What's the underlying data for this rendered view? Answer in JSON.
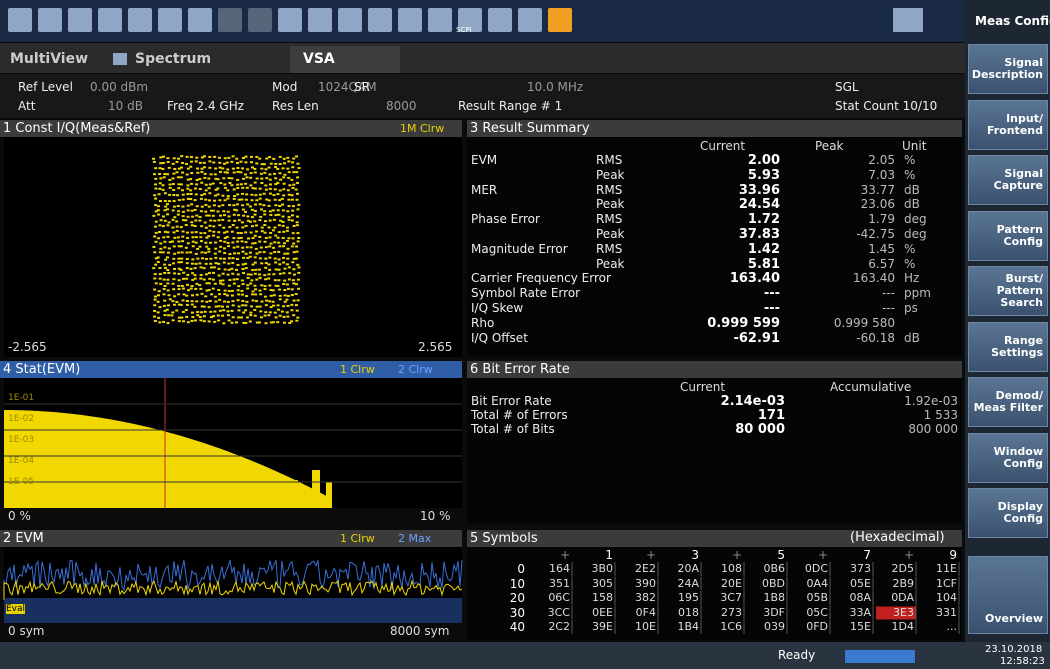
{
  "toolbar": {
    "scpi": "SCPI"
  },
  "sidebar": {
    "title": "Meas Config",
    "buttons": [
      "Signal Description",
      "Input/ Frontend",
      "Signal Capture",
      "Pattern Config",
      "Burst/ Pattern Search",
      "Range Settings",
      "Demod/ Meas Filter",
      "Window Config",
      "Display Config"
    ],
    "overview": "Overview"
  },
  "tabs": [
    "MultiView",
    "Spectrum",
    "VSA"
  ],
  "info": [
    "Ref Level",
    "0.00 dBm",
    "Mod",
    "1024QAM",
    "SR",
    "10.0 MHz",
    "SGL",
    "Att",
    "10 dB",
    "Freq 2.4 GHz",
    "Res Len",
    "8000",
    "Result Range # 1",
    "Stat Count 10/10"
  ],
  "windows": {
    "const": {
      "title": "1 Const I/Q(Meas&Ref)",
      "legend": "1M Clrw",
      "xmin": "-2.565",
      "xmax": "2.565"
    },
    "stat": {
      "title": "4 Stat(EVM)",
      "legend": [
        "1 Clrw",
        "2 Clrw"
      ],
      "ylabels": [
        "1E-01",
        "1E-02",
        "1E-03",
        "1E-04",
        "1E-05"
      ],
      "xmin": "0 %",
      "xmax": "10 %"
    },
    "evm": {
      "title": "2 EVM",
      "legend": [
        "1 Clrw",
        "2 Max"
      ],
      "eval": "Eval",
      "xmin": "0 sym",
      "xmax": "8000 sym"
    }
  },
  "result_summary": {
    "title": "3 Result Summary",
    "headers": [
      "Current",
      "Peak",
      "Unit"
    ],
    "rows": [
      [
        "EVM",
        "RMS",
        "2.00",
        "2.05",
        "%"
      ],
      [
        "",
        "Peak",
        "5.93",
        "7.03",
        "%"
      ],
      [
        "MER",
        "RMS",
        "33.96",
        "33.77",
        "dB"
      ],
      [
        "",
        "Peak",
        "24.54",
        "23.06",
        "dB"
      ],
      [
        "Phase Error",
        "RMS",
        "1.72",
        "1.79",
        "deg"
      ],
      [
        "",
        "Peak",
        "37.83",
        "-42.75",
        "deg"
      ],
      [
        "Magnitude Error",
        "RMS",
        "1.42",
        "1.45",
        "%"
      ],
      [
        "",
        "Peak",
        "5.81",
        "6.57",
        "%"
      ],
      [
        "Carrier Frequency Error",
        "",
        "163.40",
        "163.40",
        "Hz"
      ],
      [
        "Symbol Rate Error",
        "",
        "---",
        "---",
        "ppm"
      ],
      [
        "I/Q Skew",
        "",
        "---",
        "---",
        "ps"
      ],
      [
        "Rho",
        "",
        "0.999 599",
        "0.999 580",
        ""
      ],
      [
        "I/Q Offset",
        "",
        "-62.91",
        "-60.18",
        "dB"
      ]
    ]
  },
  "bit_error_rate": {
    "title": "6 Bit Error Rate",
    "headers": [
      "Current",
      "Accumulative"
    ],
    "rows": [
      [
        "Bit Error Rate",
        "2.14e-03",
        "1.92e-03"
      ],
      [
        "Total # of Errors",
        "171",
        "1 533"
      ],
      [
        "Total # of Bits",
        "80 000",
        "800 000"
      ]
    ]
  },
  "symbols": {
    "title": "5 Symbols",
    "format": "(Hexadecimal)",
    "headers": [
      "+",
      "1",
      "+",
      "3",
      "+",
      "5",
      "+",
      "7",
      "+",
      "9"
    ],
    "row_labels": [
      "0",
      "10",
      "20",
      "30",
      "40"
    ],
    "rows": [
      [
        "164",
        "3B0",
        "2E2",
        "20A",
        "108",
        "0B6",
        "0DC",
        "373",
        "2D5",
        "11E"
      ],
      [
        "351",
        "305",
        "390",
        "24A",
        "20E",
        "0BD",
        "0A4",
        "05E",
        "2B9",
        "1CF"
      ],
      [
        "06C",
        "158",
        "382",
        "195",
        "3C7",
        "1B8",
        "05B",
        "08A",
        "0DA",
        "104"
      ],
      [
        "3CC",
        "0EE",
        "0F4",
        "018",
        "273",
        "3DF",
        "05C",
        "33A",
        "3E3",
        "331"
      ],
      [
        "2C2",
        "39E",
        "10E",
        "1B4",
        "1C6",
        "039",
        "0FD",
        "15E",
        "1D4",
        "..."
      ]
    ]
  },
  "status": {
    "state": "Ready",
    "date": "23.10.2018",
    "time": "12:58:23"
  }
}
